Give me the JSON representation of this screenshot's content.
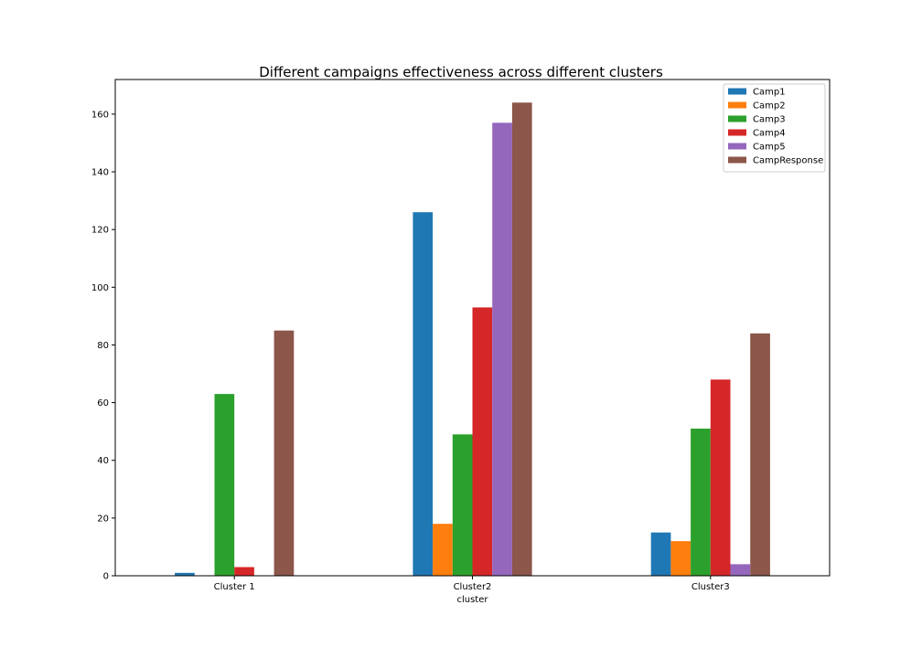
{
  "chart_data": {
    "type": "bar",
    "title": "Different campaigns effectiveness across different clusters",
    "xlabel": "cluster",
    "ylabel": "",
    "categories": [
      "Cluster 1",
      "Cluster2",
      "Cluster3"
    ],
    "ylim": [
      0,
      172
    ],
    "yticks": [
      0,
      20,
      40,
      60,
      80,
      100,
      120,
      140,
      160
    ],
    "grid": false,
    "legend_position": "top-right",
    "series": [
      {
        "name": "Camp1",
        "color": "#1f77b4",
        "values": [
          1,
          126,
          15
        ]
      },
      {
        "name": "Camp2",
        "color": "#ff7f0e",
        "values": [
          0,
          18,
          12
        ]
      },
      {
        "name": "Camp3",
        "color": "#2ca02c",
        "values": [
          63,
          49,
          51
        ]
      },
      {
        "name": "Camp4",
        "color": "#d62728",
        "values": [
          3,
          93,
          68
        ]
      },
      {
        "name": "Camp5",
        "color": "#9467bd",
        "values": [
          0,
          157,
          4
        ]
      },
      {
        "name": "CampResponse",
        "color": "#8c564b",
        "values": [
          85,
          164,
          84
        ]
      }
    ]
  }
}
